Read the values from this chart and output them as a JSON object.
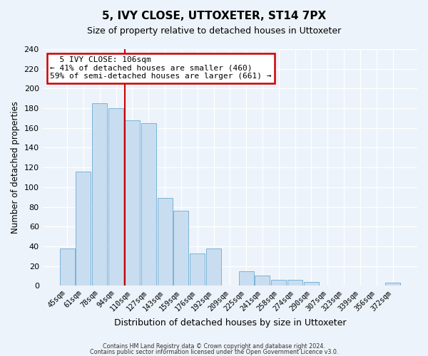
{
  "title": "5, IVY CLOSE, UTTOXETER, ST14 7PX",
  "subtitle": "Size of property relative to detached houses in Uttoxeter",
  "xlabel": "Distribution of detached houses by size in Uttoxeter",
  "ylabel": "Number of detached properties",
  "bin_labels": [
    "45sqm",
    "61sqm",
    "78sqm",
    "94sqm",
    "110sqm",
    "127sqm",
    "143sqm",
    "159sqm",
    "176sqm",
    "192sqm",
    "209sqm",
    "225sqm",
    "241sqm",
    "258sqm",
    "274sqm",
    "290sqm",
    "307sqm",
    "323sqm",
    "339sqm",
    "356sqm",
    "372sqm"
  ],
  "bar_heights": [
    38,
    116,
    185,
    180,
    168,
    165,
    89,
    76,
    33,
    38,
    0,
    15,
    10,
    6,
    6,
    4,
    0,
    0,
    0,
    0,
    3
  ],
  "bar_color": "#c9ddf0",
  "bar_edge_color": "#7ab4d8",
  "vline_index": 4,
  "vline_color": "#cc0000",
  "annotation_title": "5 IVY CLOSE: 106sqm",
  "annotation_line1": "← 41% of detached houses are smaller (460)",
  "annotation_line2": "59% of semi-detached houses are larger (661) →",
  "annotation_box_facecolor": "white",
  "annotation_box_edgecolor": "#cc0000",
  "ylim": [
    0,
    240
  ],
  "yticks": [
    0,
    20,
    40,
    60,
    80,
    100,
    120,
    140,
    160,
    180,
    200,
    220,
    240
  ],
  "footer1": "Contains HM Land Registry data © Crown copyright and database right 2024.",
  "footer2": "Contains public sector information licensed under the Open Government Licence v3.0.",
  "background_color": "#edf3fa"
}
